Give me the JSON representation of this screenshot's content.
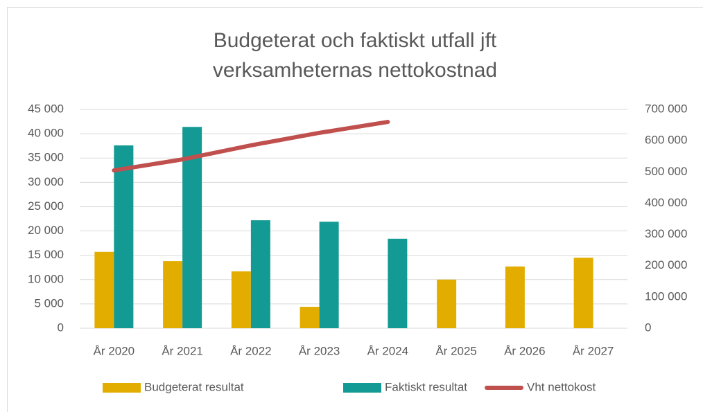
{
  "chart_data": {
    "type": "bar",
    "title": [
      "Budgeterat och faktiskt utfall jft",
      "verksamheternas nettokostnad"
    ],
    "categories": [
      "År 2020",
      "År 2021",
      "År 2022",
      "År 2023",
      "År 2024",
      "År 2025",
      "År 2026",
      "År 2027"
    ],
    "series": [
      {
        "name": "Budgeterat resultat",
        "color": "#e3ad00",
        "type": "bar",
        "values": [
          15700,
          13800,
          11700,
          4400,
          null,
          10000,
          12700,
          14500
        ]
      },
      {
        "name": "Faktiskt resultat",
        "color": "#139a94",
        "type": "bar",
        "values": [
          37600,
          41400,
          22200,
          21900,
          18400,
          null,
          null,
          null
        ]
      },
      {
        "name": "Vht nettokost",
        "color": "#c0504d",
        "type": "line",
        "axis": "y2",
        "values": [
          505000,
          540000,
          585000,
          625000,
          660000,
          null,
          null,
          null
        ]
      }
    ],
    "ylim": [
      0,
      45000
    ],
    "yticks": [
      0,
      {
        "value": 5000,
        "label": "5 000"
      },
      {
        "value": 10000,
        "label": "10 000"
      },
      {
        "value": 15000,
        "label": "15 000"
      },
      {
        "value": 20000,
        "label": "20 000"
      },
      {
        "value": 25000,
        "label": "25 000"
      },
      {
        "value": 30000,
        "label": "30 000"
      },
      {
        "value": 35000,
        "label": "35 000"
      },
      {
        "value": 40000,
        "label": "40 000"
      },
      {
        "value": 45000,
        "label": "45 000"
      }
    ],
    "y2lim": [
      0,
      700000
    ],
    "y2ticks": [
      0,
      {
        "value": 100000,
        "label": "100 000"
      },
      {
        "value": 200000,
        "label": "200 000"
      },
      {
        "value": 300000,
        "label": "300 000"
      },
      {
        "value": 400000,
        "label": "400 000"
      },
      {
        "value": 500000,
        "label": "500 000"
      },
      {
        "value": 600000,
        "label": "600 000"
      },
      {
        "value": 700000,
        "label": "700 000"
      }
    ],
    "grid": true,
    "legend": "bottom"
  }
}
